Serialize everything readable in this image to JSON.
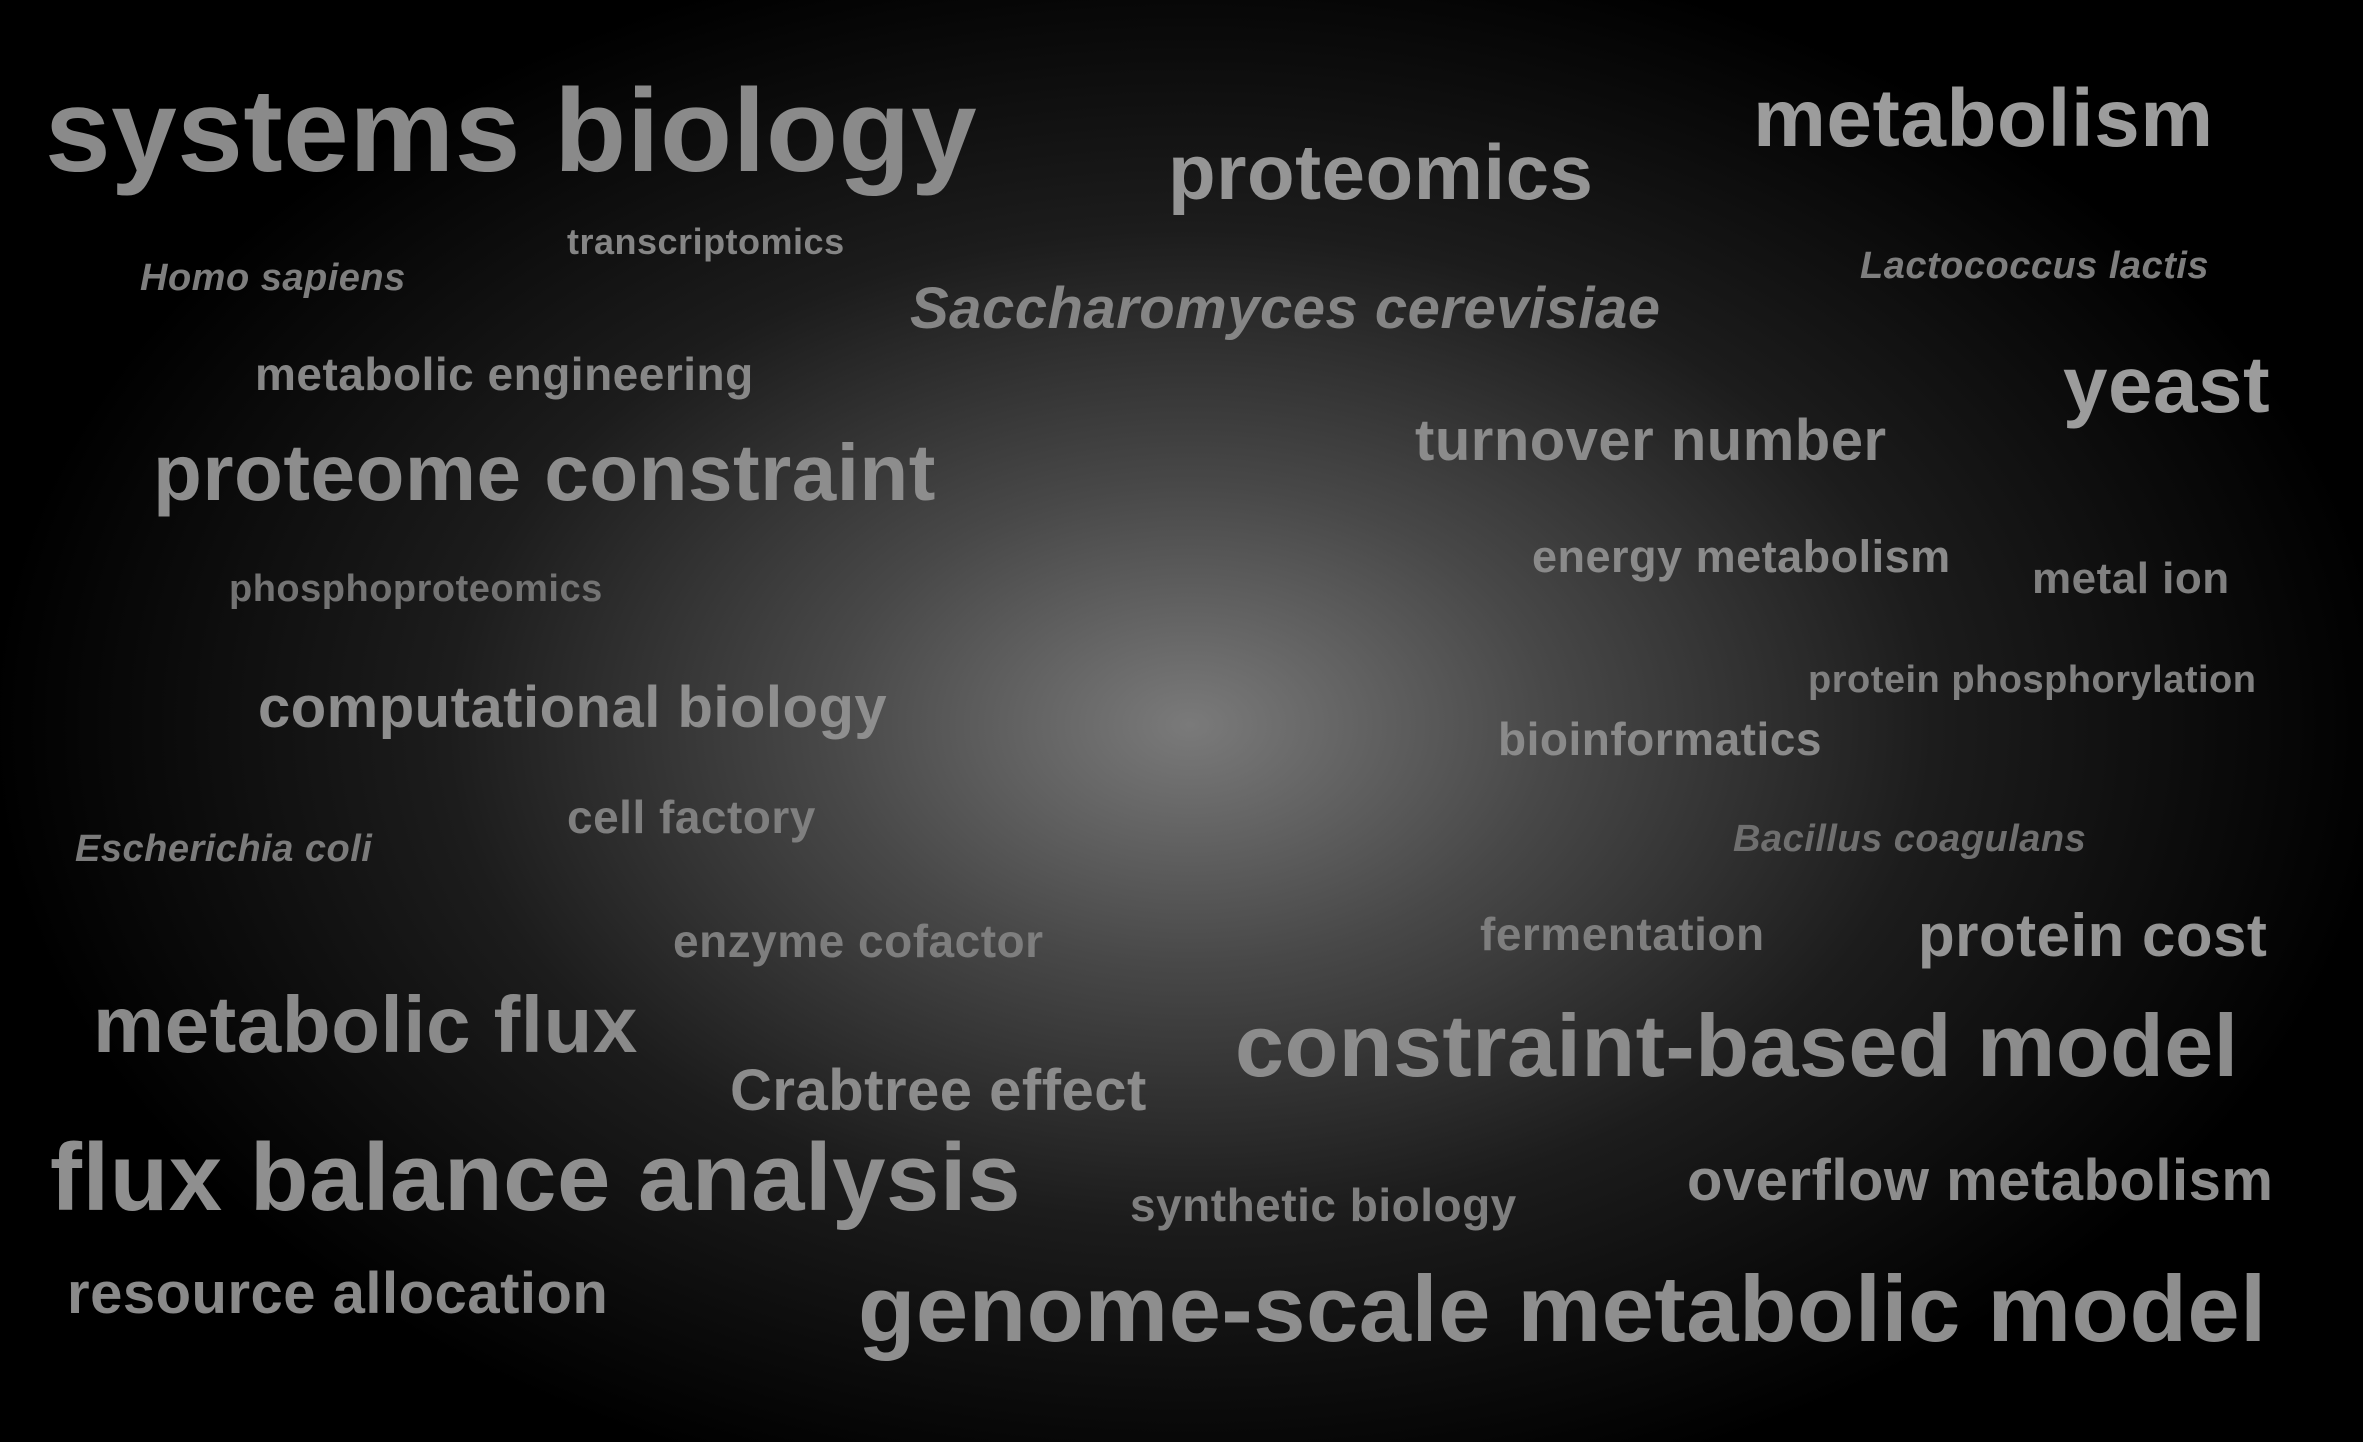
{
  "terms": {
    "systems_biology": "systems biology",
    "proteomics": "proteomics",
    "metabolism": "metabolism",
    "homo_sapiens": "Homo sapiens",
    "transcriptomics": "transcriptomics",
    "saccharomyces_cerevisiae": "Saccharomyces cerevisiae",
    "lactococcus_lactis": "Lactococcus lactis",
    "metabolic_engineering": "metabolic engineering",
    "yeast": "yeast",
    "proteome_constraint": "proteome constraint",
    "turnover_number": "turnover number",
    "energy_metabolism": "energy metabolism",
    "metal_ion": "metal ion",
    "phosphoproteomics": "phosphoproteomics",
    "protein_phosphorylation": "protein phosphorylation",
    "computational_biology": "computational biology",
    "bioinformatics": "bioinformatics",
    "cell_factory": "cell factory",
    "escherichia_coli": "Escherichia coli",
    "bacillus_coagulans": "Bacillus coagulans",
    "enzyme_cofactor": "enzyme cofactor",
    "fermentation": "fermentation",
    "protein_cost": "protein cost",
    "metabolic_flux": "metabolic flux",
    "constraint_based_model": "constraint-based model",
    "crabtree_effect": "Crabtree effect",
    "flux_balance_analysis": "flux balance analysis",
    "synthetic_biology": "synthetic biology",
    "overflow_metabolism": "overflow metabolism",
    "resource_allocation": "resource allocation",
    "genome_scale_metabolic_model": "genome-scale metabolic model"
  },
  "colors": {
    "background_center": "#7a7a7a",
    "background_edge": "#000000",
    "text_light": "#9c9c9c",
    "text_dim": "#737373"
  }
}
